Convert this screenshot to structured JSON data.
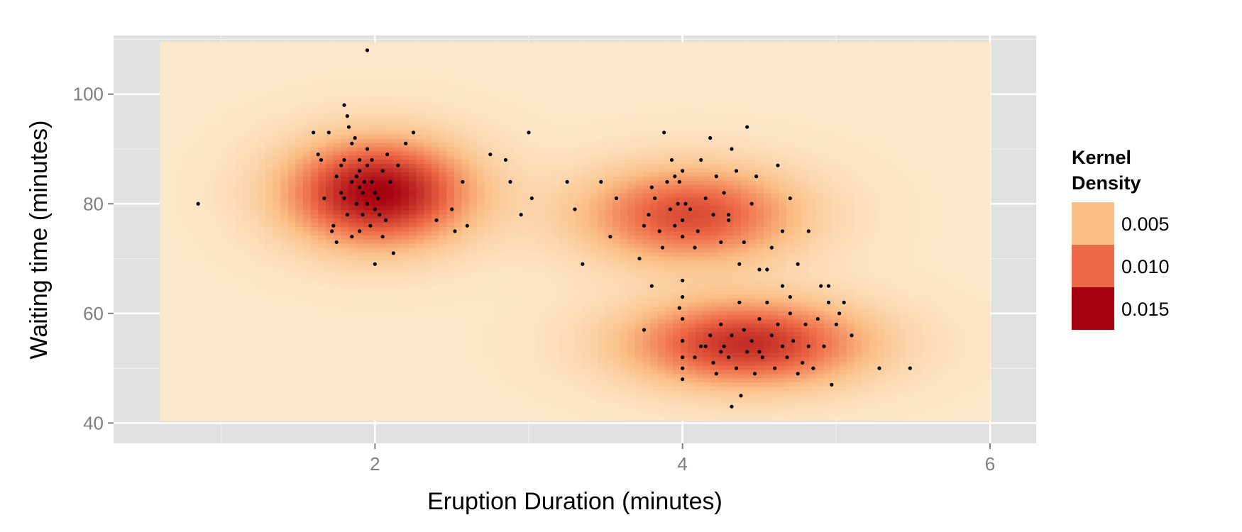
{
  "chart_data": {
    "type": "heatmap",
    "subtype": "2d-kernel-density-with-scatter-overlay",
    "title": "",
    "xlabel": "Eruption Duration (minutes)",
    "ylabel": "Waiting time (minutes)",
    "xlim": [
      0.3,
      6.3
    ],
    "ylim": [
      36.3,
      110.7
    ],
    "x_ticks": [
      2,
      4,
      6
    ],
    "x_tick_labels": [
      "2",
      "4",
      "6"
    ],
    "y_ticks": [
      40,
      60,
      80,
      100
    ],
    "y_tick_labels": [
      "40",
      "60",
      "80",
      "100"
    ],
    "grid": true,
    "panel_background": "#e0e0e0",
    "grid_color": "#ffffff",
    "density_extent": {
      "x": [
        0.6,
        6.0
      ],
      "y": [
        40.5,
        109.5
      ]
    },
    "density_components": [
      {
        "mx": 2.02,
        "my": 82,
        "sx": 0.42,
        "sy": 6.8,
        "w": 0.0165
      },
      {
        "mx": 4.05,
        "my": 78,
        "sx": 0.5,
        "sy": 6.2,
        "w": 0.0115
      },
      {
        "mx": 4.42,
        "my": 54.5,
        "sx": 0.55,
        "sy": 5.6,
        "w": 0.0135
      }
    ],
    "density_background": 0.0005,
    "color_scale": {
      "low": "#fcecd2",
      "mid1": "#fbbf86",
      "mid2": "#ee6a46",
      "high": "#a50010",
      "stops": [
        0,
        0.005,
        0.01,
        0.017
      ]
    },
    "legend": {
      "title_lines": [
        "Kernel",
        "Density"
      ],
      "position": "right",
      "entries": [
        {
          "label": "0.005",
          "color": "#fbbf86"
        },
        {
          "label": "0.010",
          "color": "#ee6a46"
        },
        {
          "label": "0.015",
          "color": "#a50010"
        }
      ]
    },
    "points": [
      [
        0.85,
        80
      ],
      [
        1.95,
        108
      ],
      [
        1.6,
        93
      ],
      [
        1.63,
        89
      ],
      [
        1.65,
        88
      ],
      [
        1.7,
        93
      ],
      [
        1.72,
        75
      ],
      [
        1.75,
        85
      ],
      [
        1.78,
        82
      ],
      [
        1.8,
        81
      ],
      [
        1.8,
        88
      ],
      [
        1.82,
        78
      ],
      [
        1.83,
        94
      ],
      [
        1.85,
        84
      ],
      [
        1.85,
        74
      ],
      [
        1.87,
        92
      ],
      [
        1.88,
        80
      ],
      [
        1.88,
        85
      ],
      [
        1.9,
        83
      ],
      [
        1.9,
        86
      ],
      [
        1.92,
        78
      ],
      [
        1.92,
        82
      ],
      [
        1.93,
        84
      ],
      [
        1.95,
        80
      ],
      [
        1.95,
        87
      ],
      [
        1.97,
        76
      ],
      [
        1.98,
        84
      ],
      [
        2.0,
        79
      ],
      [
        2.0,
        82
      ],
      [
        2.02,
        81
      ],
      [
        2.03,
        78
      ],
      [
        2.05,
        86
      ],
      [
        2.07,
        77
      ],
      [
        2.1,
        84
      ],
      [
        2.12,
        71
      ],
      [
        2.15,
        87
      ],
      [
        2.0,
        69
      ],
      [
        1.9,
        75
      ],
      [
        1.8,
        98
      ],
      [
        1.82,
        96
      ],
      [
        1.75,
        73
      ],
      [
        1.73,
        76
      ],
      [
        1.85,
        91
      ],
      [
        1.95,
        90
      ],
      [
        2.08,
        89
      ],
      [
        2.2,
        91
      ],
      [
        2.25,
        93
      ],
      [
        2.4,
        77
      ],
      [
        2.5,
        79
      ],
      [
        2.52,
        75
      ],
      [
        2.57,
        84
      ],
      [
        2.6,
        76
      ],
      [
        1.67,
        81
      ],
      [
        1.78,
        87
      ],
      [
        2.05,
        74
      ],
      [
        1.9,
        88
      ],
      [
        1.98,
        88
      ],
      [
        2.75,
        89
      ],
      [
        2.85,
        88
      ],
      [
        2.88,
        84
      ],
      [
        2.95,
        78
      ],
      [
        3.0,
        93
      ],
      [
        3.02,
        81
      ],
      [
        3.25,
        84
      ],
      [
        3.3,
        79
      ],
      [
        3.35,
        69
      ],
      [
        3.47,
        84
      ],
      [
        3.53,
        74
      ],
      [
        3.57,
        81
      ],
      [
        3.72,
        70
      ],
      [
        3.75,
        76
      ],
      [
        3.78,
        78
      ],
      [
        3.8,
        83
      ],
      [
        3.82,
        81
      ],
      [
        3.85,
        75
      ],
      [
        3.87,
        72
      ],
      [
        3.88,
        93
      ],
      [
        3.9,
        84
      ],
      [
        3.92,
        79
      ],
      [
        3.93,
        88
      ],
      [
        3.95,
        76
      ],
      [
        3.95,
        85
      ],
      [
        3.97,
        80
      ],
      [
        3.98,
        84
      ],
      [
        4.0,
        86
      ],
      [
        4.0,
        77
      ],
      [
        4.0,
        74
      ],
      [
        4.0,
        66
      ],
      [
        4.0,
        63
      ],
      [
        4.02,
        80
      ],
      [
        4.05,
        79
      ],
      [
        4.08,
        72
      ],
      [
        4.1,
        75
      ],
      [
        4.12,
        88
      ],
      [
        4.15,
        81
      ],
      [
        4.18,
        92
      ],
      [
        4.2,
        78
      ],
      [
        4.22,
        85
      ],
      [
        4.25,
        73
      ],
      [
        4.27,
        82
      ],
      [
        4.3,
        77
      ],
      [
        4.32,
        90
      ],
      [
        4.35,
        86
      ],
      [
        4.37,
        69
      ],
      [
        4.4,
        73
      ],
      [
        4.42,
        94
      ],
      [
        4.45,
        80
      ],
      [
        4.48,
        85
      ],
      [
        4.5,
        68
      ],
      [
        4.55,
        68
      ],
      [
        4.62,
        87
      ],
      [
        4.65,
        75
      ],
      [
        4.7,
        81
      ],
      [
        4.75,
        69
      ],
      [
        4.82,
        75
      ],
      [
        4.58,
        72
      ],
      [
        3.8,
        65
      ],
      [
        3.75,
        57
      ],
      [
        4.3,
        78
      ],
      [
        3.98,
        61
      ],
      [
        4.0,
        59
      ],
      [
        4.0,
        55
      ],
      [
        4.0,
        52
      ],
      [
        4.0,
        50
      ],
      [
        4.0,
        48
      ],
      [
        4.08,
        52
      ],
      [
        4.12,
        54
      ],
      [
        4.15,
        54
      ],
      [
        4.18,
        56
      ],
      [
        4.2,
        51
      ],
      [
        4.22,
        49
      ],
      [
        4.25,
        58
      ],
      [
        4.27,
        54
      ],
      [
        4.3,
        52
      ],
      [
        4.32,
        56
      ],
      [
        4.35,
        50
      ],
      [
        4.37,
        62
      ],
      [
        4.4,
        57
      ],
      [
        4.42,
        53
      ],
      [
        4.45,
        55
      ],
      [
        4.47,
        49
      ],
      [
        4.5,
        59
      ],
      [
        4.52,
        52
      ],
      [
        4.55,
        62
      ],
      [
        4.58,
        56
      ],
      [
        4.6,
        50
      ],
      [
        4.62,
        58
      ],
      [
        4.65,
        54
      ],
      [
        4.68,
        52
      ],
      [
        4.7,
        60
      ],
      [
        4.72,
        55
      ],
      [
        4.75,
        49
      ],
      [
        4.78,
        51
      ],
      [
        4.8,
        58
      ],
      [
        4.82,
        54
      ],
      [
        4.85,
        50
      ],
      [
        4.9,
        65
      ],
      [
        4.92,
        54
      ],
      [
        4.95,
        62
      ],
      [
        4.97,
        47
      ],
      [
        5.0,
        58
      ],
      [
        5.02,
        60
      ],
      [
        5.05,
        62
      ],
      [
        5.1,
        56
      ],
      [
        5.28,
        50
      ],
      [
        5.48,
        50
      ],
      [
        4.38,
        45
      ],
      [
        4.32,
        43
      ],
      [
        4.7,
        63
      ],
      [
        4.65,
        65
      ],
      [
        4.95,
        65
      ],
      [
        4.5,
        53
      ],
      [
        4.25,
        53
      ],
      [
        4.88,
        59
      ]
    ]
  }
}
